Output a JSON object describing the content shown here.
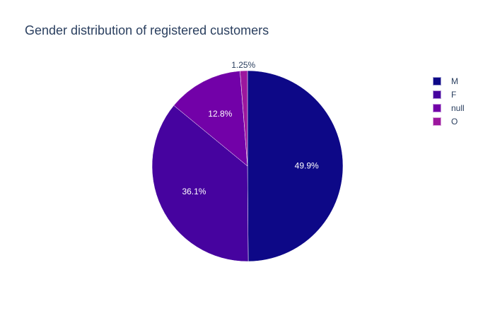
{
  "chart_data": {
    "type": "pie",
    "title": "Gender distribution of registered customers",
    "labels": [
      "M",
      "F",
      "null",
      "O"
    ],
    "values": [
      49.9,
      36.1,
      12.8,
      1.25
    ],
    "value_labels": [
      "49.9%",
      "36.1%",
      "12.8%",
      "1.25%"
    ],
    "colors": [
      "#0d0887",
      "#46039f",
      "#7201a8",
      "#9c179e"
    ],
    "legend_placement": "top-right",
    "direction": "clockwise",
    "start": "top"
  }
}
